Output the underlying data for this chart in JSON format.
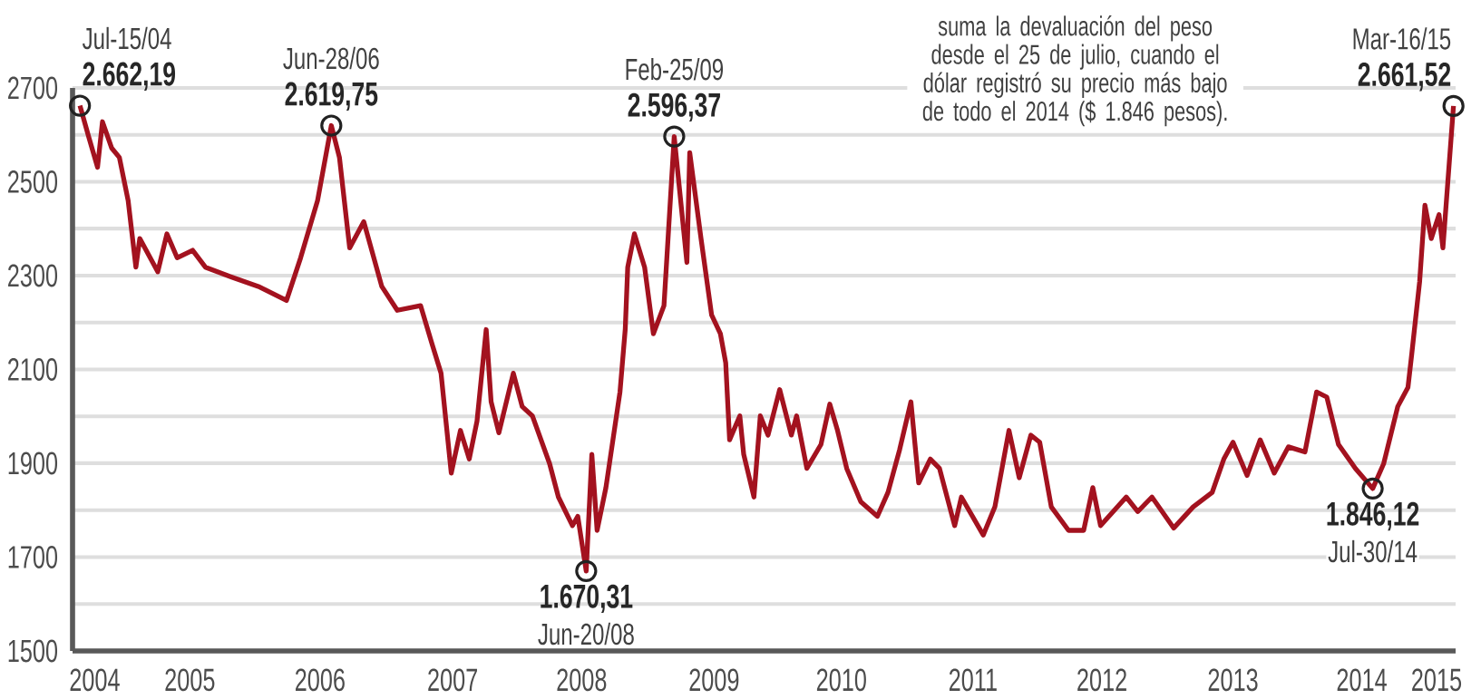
{
  "chart_data": {
    "type": "line",
    "annotations": [
      "suma la devaluación del peso desde el 25 de julio, cuando el dólar registró su precio más bajo de todo el 2014 ($ 1.846 pesos).",
      {
        "text": "Jul-15/04",
        "x": "2004-07-15",
        "y": 2662.19
      },
      {
        "text": "Jun-28/06",
        "x": "2006-06-28",
        "y": 2619.75
      },
      {
        "text": "Jun-20/08",
        "x": "2008-06-20",
        "y": 1670.31
      },
      {
        "text": "Feb-25/09",
        "x": "2009-02-25",
        "y": 2596.37
      },
      {
        "text": "Jul-30/14",
        "x": "2014-07-30",
        "y": 1846.12
      },
      {
        "text": "Mar-16/15",
        "x": "2015-03-16",
        "y": 2661.52
      }
    ],
    "series": [
      {
        "color": "#a3121f",
        "x": [
          "2004-07-15",
          "2004-08-08",
          "2004-09-03",
          "2004-09-17",
          "2004-10-13",
          "2004-11-04",
          "2004-11-29",
          "2004-12-21",
          "2005-01-01",
          "2005-02-21",
          "2005-03-19",
          "2005-04-17",
          "2005-05-31",
          "2005-07-06",
          "2005-09-14",
          "2005-12-03",
          "2006-02-21",
          "2006-04-02",
          "2006-05-20",
          "2006-06-28",
          "2006-07-21",
          "2006-08-19",
          "2006-09-28",
          "2006-11-18",
          "2007-01-01",
          "2007-03-08",
          "2007-04-10",
          "2007-05-05",
          "2007-06-03",
          "2007-06-29",
          "2007-07-24",
          "2007-08-15",
          "2007-09-10",
          "2007-09-24",
          "2007-10-16",
          "2007-11-26",
          "2007-12-21",
          "2008-01-19",
          "2008-03-08",
          "2008-04-02",
          "2008-05-12",
          "2008-05-27",
          "2008-06-20",
          "2008-07-06",
          "2008-07-21",
          "2008-08-15",
          "2008-09-24",
          "2008-10-09",
          "2008-10-16",
          "2008-11-04",
          "2008-12-03",
          "2008-12-28",
          "2009-01-27",
          "2009-02-25",
          "2009-04-02",
          "2009-04-10",
          "2009-05-12",
          "2009-06-11",
          "2009-07-06",
          "2009-07-21",
          "2009-08-01",
          "2009-08-30",
          "2009-09-10",
          "2009-10-09",
          "2009-10-27",
          "2009-11-18",
          "2009-12-21",
          "2010-01-23",
          "2010-02-07",
          "2010-03-08",
          "2010-04-17",
          "2010-05-12",
          "2010-06-03",
          "2010-06-29",
          "2010-08-08",
          "2010-09-24",
          "2010-10-24",
          "2010-11-26",
          "2010-12-28",
          "2011-01-19",
          "2011-02-21",
          "2011-03-19",
          "2011-05-01",
          "2011-05-20",
          "2011-07-21",
          "2011-08-23",
          "2011-10-02",
          "2011-10-31",
          "2011-12-03",
          "2011-12-28",
          "2012-01-30",
          "2012-03-19",
          "2012-05-01",
          "2012-05-27",
          "2012-06-18",
          "2012-08-30",
          "2012-10-02",
          "2012-11-11",
          "2013-01-12",
          "2013-03-08",
          "2013-05-01",
          "2013-06-03",
          "2013-06-29",
          "2013-08-08",
          "2013-09-14",
          "2013-10-24",
          "2013-12-03",
          "2014-01-19",
          "2014-02-21",
          "2014-03-22",
          "2014-04-24",
          "2014-06-11",
          "2014-07-30",
          "2014-08-30",
          "2014-10-09",
          "2014-11-07",
          "2014-11-18",
          "2014-12-10",
          "2014-12-25",
          "2015-01-12",
          "2015-02-03",
          "2015-02-14",
          "2015-03-16"
        ],
        "values": [
          2662.19,
          2598,
          2531,
          2628,
          2572,
          2552,
          2460,
          2318,
          2379,
          2308,
          2389,
          2338,
          2354,
          2318,
          2298,
          2277,
          2247,
          2338,
          2460,
          2619.75,
          2552,
          2359,
          2415,
          2277,
          2226,
          2236,
          2153,
          2092,
          1879,
          1970,
          1909,
          1990,
          2185,
          2031,
          1965,
          2092,
          2021,
          2001,
          1899,
          1828,
          1767,
          1787,
          1670.31,
          1919,
          1757,
          1848,
          2052,
          2186,
          2318,
          2389,
          2318,
          2176,
          2236,
          2596.37,
          2328,
          2562,
          2379,
          2216,
          2176,
          2114,
          1950,
          2001,
          1919,
          1828,
          2001,
          1960,
          2057,
          1960,
          2001,
          1889,
          1940,
          2026,
          1970,
          1889,
          1818,
          1787,
          1838,
          1929,
          2031,
          1858,
          1909,
          1889,
          1767,
          1828,
          1747,
          1807,
          1970,
          1869,
          1960,
          1945,
          1807,
          1757,
          1757,
          1848,
          1767,
          1828,
          1797,
          1828,
          1762,
          1807,
          1838,
          1909,
          1945,
          1874,
          1950,
          1879,
          1935,
          1924,
          2052,
          2041,
          1940,
          1889,
          1846.12,
          1899,
          2021,
          2062,
          2135,
          2287,
          2450,
          2379,
          2430,
          2359,
          2661.52
        ]
      },
      {
        "type": "scatter",
        "color": "#222222",
        "marker": "circle",
        "x": [
          "2004-07-15",
          "2006-06-28",
          "2008-06-20",
          "2009-02-25",
          "2014-07-30",
          "2015-03-16"
        ],
        "values": [
          2662.19,
          2619.75,
          1670.31,
          2596.37,
          1846.12,
          2661.52
        ],
        "value_labels": [
          "2.662,19",
          "2.619,75",
          "1.670,31",
          "2.596,37",
          "1.846,12",
          "2.661,52"
        ]
      }
    ],
    "xlim": [
      "2004-06-24",
      "2015-03-22"
    ],
    "xticks": [
      {
        "value": "2004-08-26",
        "label": "2004"
      },
      {
        "value": "2005-05-23",
        "label": "2005"
      },
      {
        "value": "2006-05-27",
        "label": "2006"
      },
      {
        "value": "2007-06-07",
        "label": "2007"
      },
      {
        "value": "2008-06-07",
        "label": "2008"
      },
      {
        "value": "2009-06-18",
        "label": "2009"
      },
      {
        "value": "2010-06-14",
        "label": "2010"
      },
      {
        "value": "2011-06-22",
        "label": "2011"
      },
      {
        "value": "2012-06-22",
        "label": "2012"
      },
      {
        "value": "2013-06-29",
        "label": "2013"
      },
      {
        "value": "2014-06-29",
        "label": "2014"
      },
      {
        "value": "2015-01-27",
        "label": "2015"
      }
    ],
    "ylim": [
      1500,
      2700
    ],
    "yticks": [
      1500,
      {
        "value": 1600,
        "label": null
      },
      1700,
      {
        "value": 1800,
        "label": null
      },
      1900,
      {
        "value": 2000,
        "label": null
      },
      2100,
      {
        "value": 2200,
        "label": null
      },
      2300,
      {
        "value": 2400,
        "label": null
      },
      2500,
      {
        "value": 2600,
        "label": null
      },
      2700
    ],
    "grid": "y"
  }
}
